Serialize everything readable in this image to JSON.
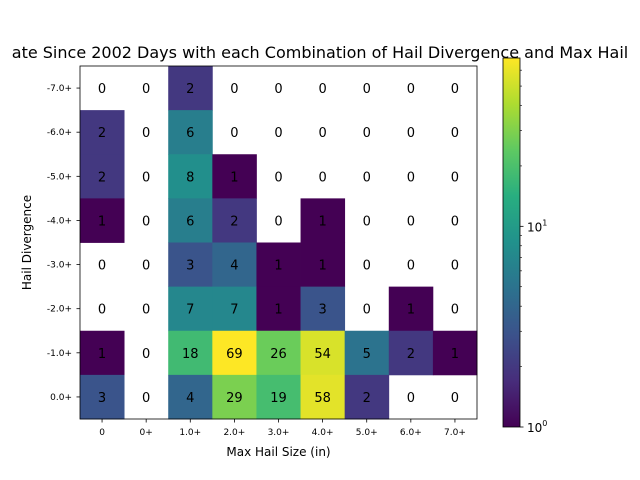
{
  "chart_data": {
    "type": "heatmap",
    "title": "ate Since 2002 Days with each Combination of Hail Divergence and Max Hail",
    "xlabel": "Max Hail Size (in)",
    "ylabel": "Hail Divergence",
    "x_categories": [
      "0",
      "0+",
      "1.0+",
      "2.0+",
      "3.0+",
      "4.0+",
      "5.0+",
      "6.0+",
      "7.0+"
    ],
    "y_categories": [
      "-7.0+",
      "-6.0+",
      "-5.0+",
      "-4.0+",
      "-3.0+",
      "-2.0+",
      "-1.0+",
      "0.0+"
    ],
    "values": [
      [
        0,
        0,
        2,
        0,
        0,
        0,
        0,
        0,
        0
      ],
      [
        2,
        0,
        6,
        0,
        0,
        0,
        0,
        0,
        0
      ],
      [
        2,
        0,
        8,
        1,
        0,
        0,
        0,
        0,
        0
      ],
      [
        1,
        0,
        6,
        2,
        0,
        1,
        0,
        0,
        0
      ],
      [
        0,
        0,
        3,
        4,
        1,
        1,
        0,
        0,
        0
      ],
      [
        0,
        0,
        7,
        7,
        1,
        3,
        0,
        1,
        0
      ],
      [
        1,
        0,
        18,
        69,
        26,
        54,
        5,
        2,
        1
      ],
      [
        3,
        0,
        4,
        29,
        19,
        58,
        2,
        0,
        0
      ]
    ],
    "color_scale": "log",
    "colormap": "viridis",
    "vmin": 1,
    "vmax": 69,
    "colorbar": {
      "ticks": [
        {
          "value": 1,
          "base": "10",
          "exp": "0"
        },
        {
          "value": 10,
          "base": "10",
          "exp": "1"
        }
      ]
    }
  }
}
